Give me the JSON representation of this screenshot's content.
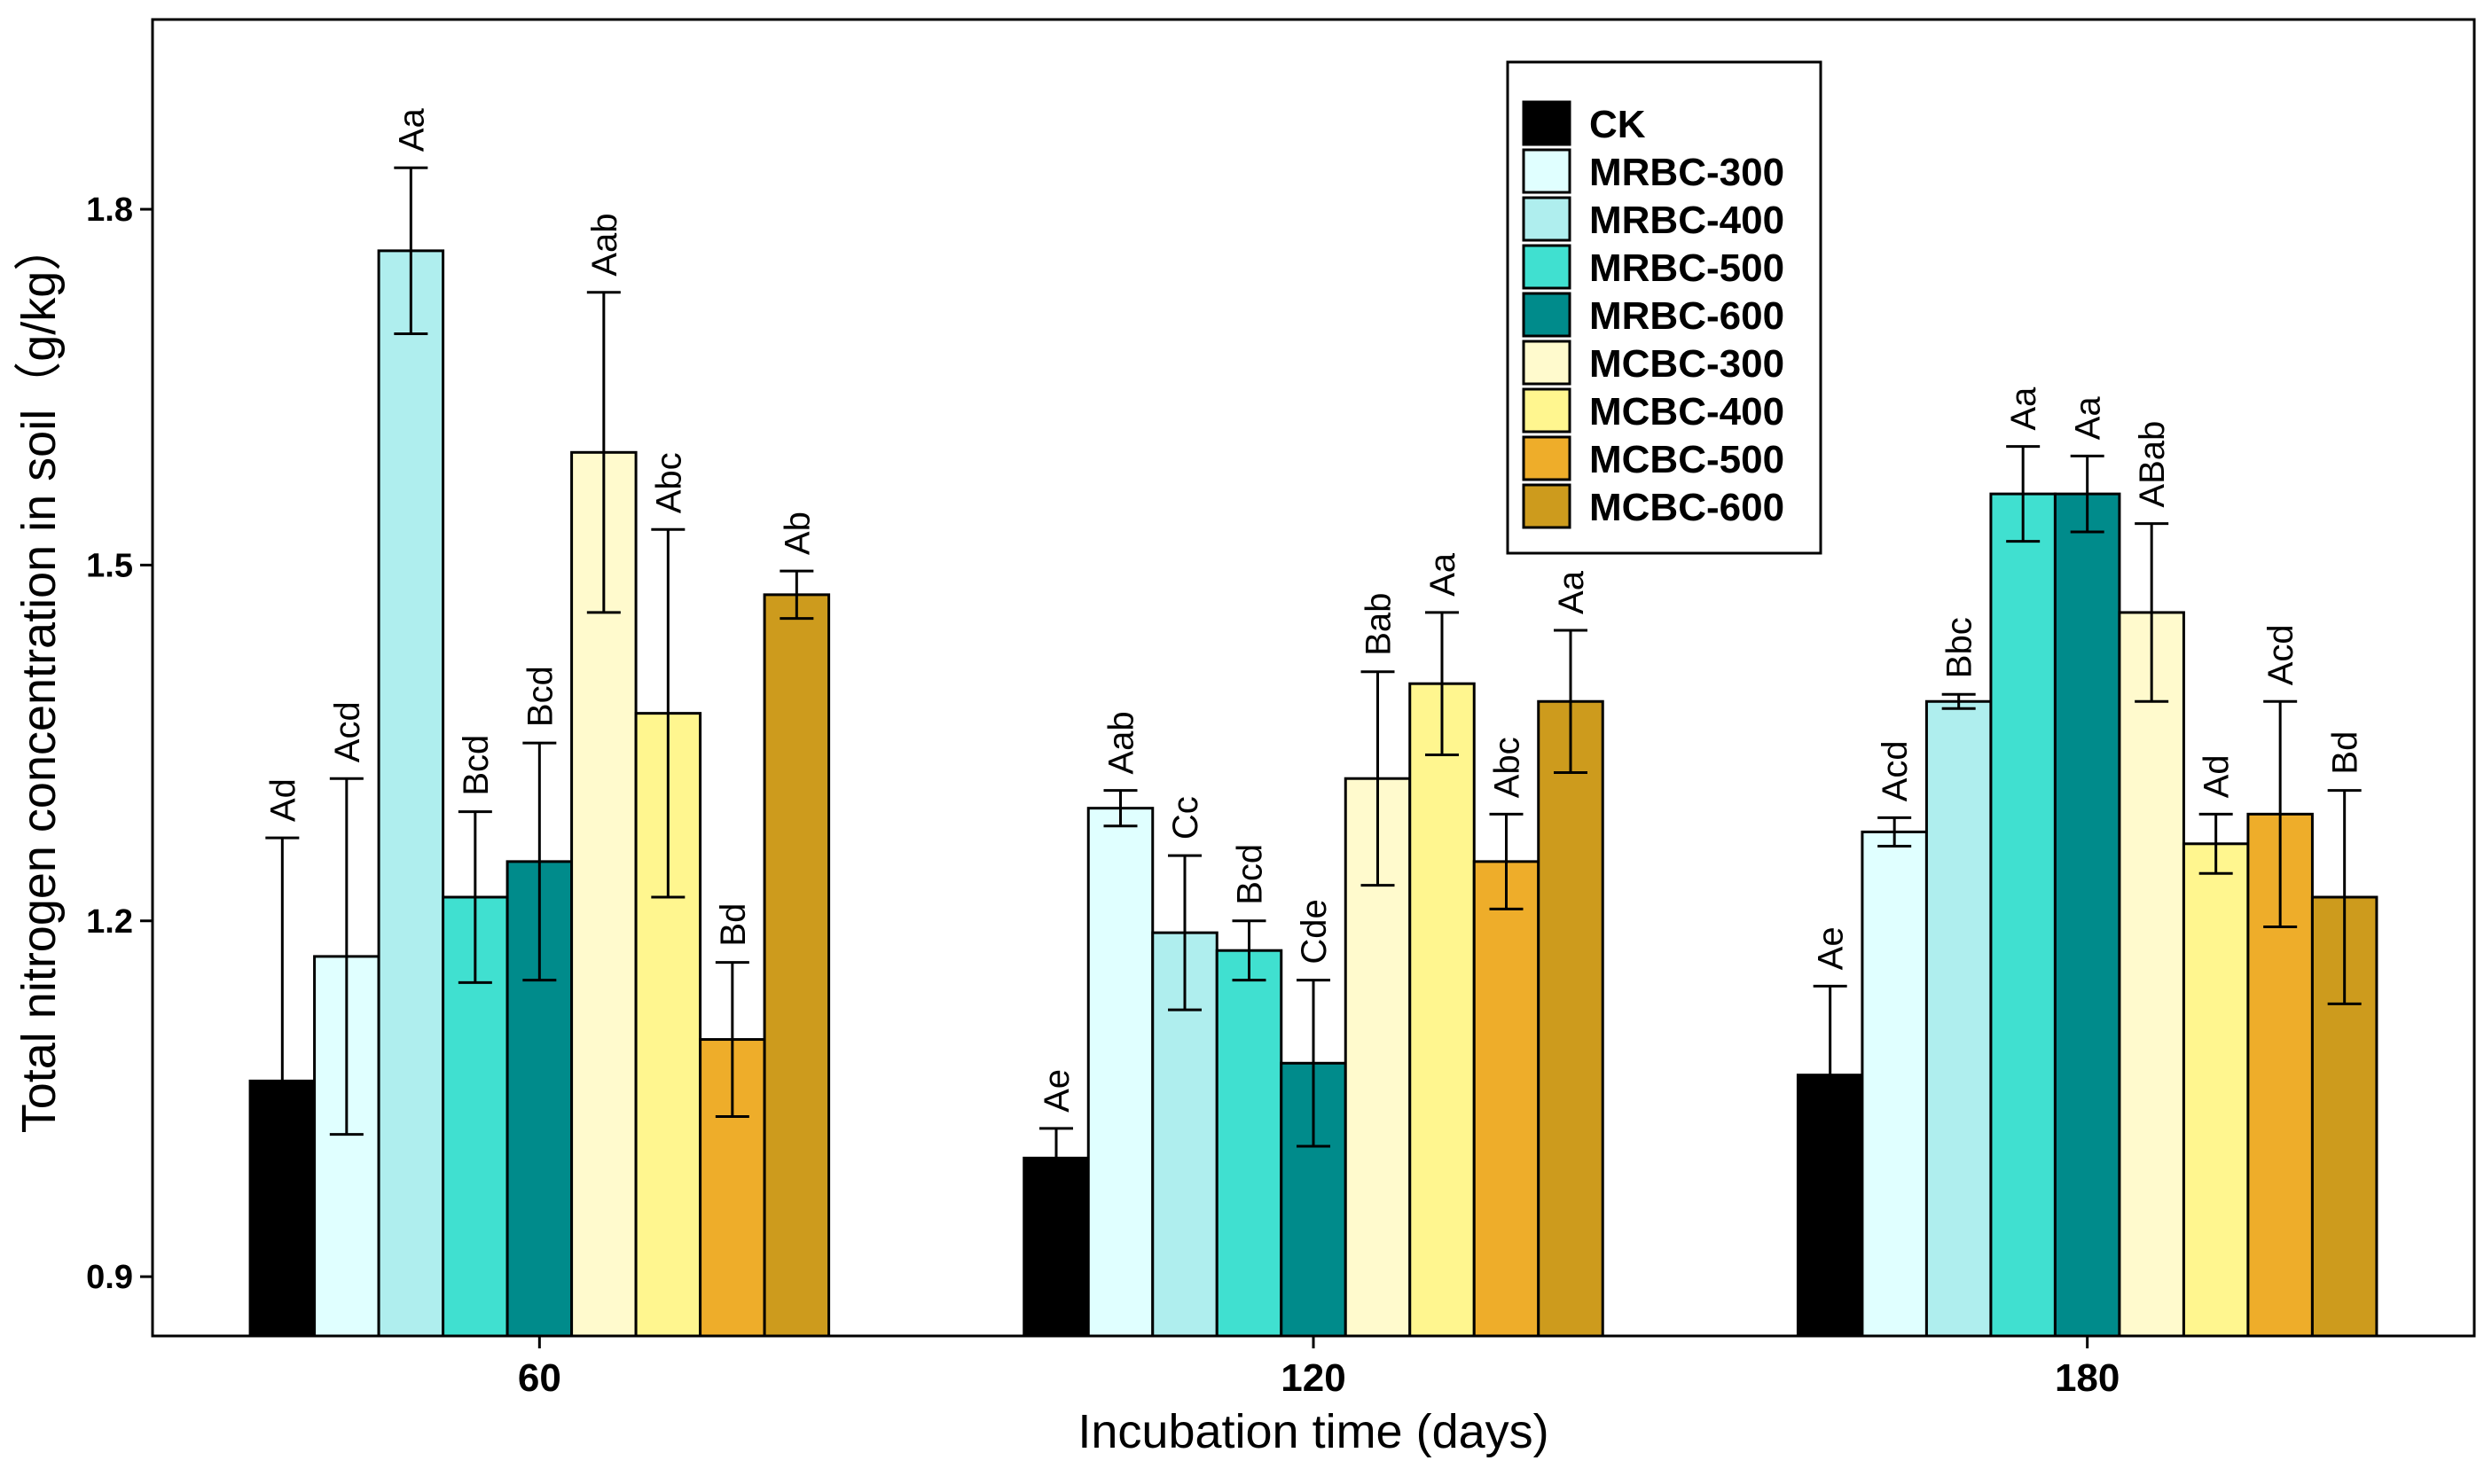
{
  "chart_data": {
    "type": "bar",
    "title": "",
    "xlabel": "Incubation time (days)",
    "ylabel": "Total nitrogen concentration in soil（g/kg）",
    "ylim": [
      0.85,
      1.96
    ],
    "yticks": [
      "0.9",
      "1.2",
      "1.5",
      "1.8"
    ],
    "ytick_values": [
      0.9,
      1.2,
      1.5,
      1.8
    ],
    "categories": [
      "60",
      "120",
      "180"
    ],
    "legend_position": "top-right",
    "grid": false,
    "series": [
      {
        "name": "CK",
        "color": "#000000",
        "values": [
          1.065,
          1.0,
          1.07
        ],
        "errors": [
          0.205,
          0.025,
          0.075
        ],
        "labels": [
          "Ad",
          "Ae",
          "Ae"
        ]
      },
      {
        "name": "MRBC-300",
        "color": "#E0FFFF",
        "values": [
          1.17,
          1.295,
          1.275
        ],
        "errors": [
          0.15,
          0.015,
          0.012
        ],
        "labels": [
          "Acd",
          "Aab",
          "Acd"
        ]
      },
      {
        "name": "MRBC-400",
        "color": "#AFEEEE",
        "values": [
          1.765,
          1.19,
          1.385
        ],
        "errors": [
          0.07,
          0.065,
          0.006
        ],
        "labels": [
          "Aa",
          "Cc",
          "Bbc"
        ]
      },
      {
        "name": "MRBC-500",
        "color": "#40E0D0",
        "values": [
          1.22,
          1.175,
          1.56
        ],
        "errors": [
          0.072,
          0.025,
          0.04
        ],
        "labels": [
          "Bcd",
          "Bcd",
          "Aa"
        ]
      },
      {
        "name": "MRBC-600",
        "color": "#008B8B",
        "values": [
          1.25,
          1.08,
          1.56
        ],
        "errors": [
          0.1,
          0.07,
          0.032
        ],
        "labels": [
          "Bcd",
          "Cde",
          "Aa"
        ]
      },
      {
        "name": "MCBC-300",
        "color": "#FFFACD",
        "values": [
          1.595,
          1.32,
          1.46
        ],
        "errors": [
          0.135,
          0.09,
          0.075
        ],
        "labels": [
          "Aab",
          "Bab",
          "ABab"
        ]
      },
      {
        "name": "MCBC-400",
        "color": "#FFF68F",
        "values": [
          1.375,
          1.4,
          1.265
        ],
        "errors": [
          0.155,
          0.06,
          0.025
        ],
        "labels": [
          "Abc",
          "Aa",
          "Ad"
        ]
      },
      {
        "name": "MCBC-500",
        "color": "#EEAD2A",
        "values": [
          1.1,
          1.25,
          1.29
        ],
        "errors": [
          0.065,
          0.04,
          0.095
        ],
        "labels": [
          "Bd",
          "Abc",
          "Acd"
        ]
      },
      {
        "name": "MCBC-600",
        "color": "#CD9B1D",
        "values": [
          1.475,
          1.385,
          1.22
        ],
        "errors": [
          0.02,
          0.06,
          0.09
        ],
        "labels": [
          "Ab",
          "Aa",
          "Bd"
        ]
      }
    ]
  }
}
